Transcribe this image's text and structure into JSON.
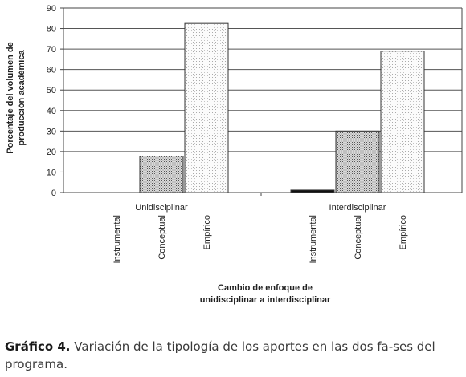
{
  "chart_data": {
    "type": "bar",
    "groups": [
      "Unidisciplinar",
      "Interdisciplinar"
    ],
    "series": [
      {
        "name": "Instrumental",
        "values": [
          0,
          1.2
        ],
        "pattern": "black"
      },
      {
        "name": "Conceptual",
        "values": [
          17.8,
          30
        ],
        "pattern": "dense-dots"
      },
      {
        "name": "Empírico",
        "values": [
          82.5,
          69
        ],
        "pattern": "light-dots"
      }
    ],
    "ylim": [
      0,
      90
    ],
    "yticks": [
      0,
      10,
      20,
      30,
      40,
      50,
      60,
      70,
      80,
      90
    ],
    "ylabel_line1": "Porcentaje del volumen de",
    "ylabel_line2": "producción académica",
    "xlabel_line1": "Cambio de enfoque de",
    "xlabel_line2": "unidisciplinar a interdisciplinar",
    "grid": true
  },
  "caption": {
    "bold": "Gráfico 4.",
    "text": " Variación de la tipología de los aportes en las dos fa-ses del programa."
  }
}
